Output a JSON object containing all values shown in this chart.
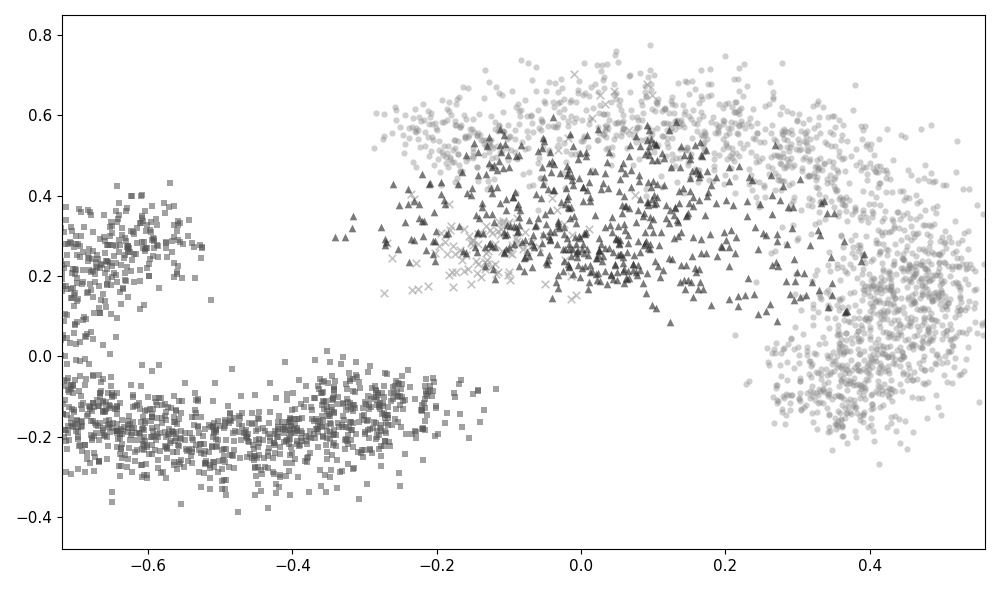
{
  "seed": 7,
  "n_squares": 1200,
  "n_crosses_main": 60,
  "n_crosses_scatter": 30,
  "n_circles": 1400,
  "n_triangles": 400,
  "square_color": "#555555",
  "cross_color": "#aaaaaa",
  "circle_color": "#888888",
  "triangle_color": "#333333",
  "square_alpha": 0.55,
  "cross_alpha": 0.7,
  "circle_alpha": 0.4,
  "triangle_alpha": 0.65,
  "square_size": 15,
  "cross_size": 30,
  "circle_size": 20,
  "triangle_size": 30,
  "xlim": [
    -0.72,
    0.56
  ],
  "ylim": [
    -0.48,
    0.85
  ],
  "xticks": [
    -0.6,
    -0.4,
    -0.2,
    0.0,
    0.2,
    0.4
  ],
  "yticks": [
    -0.4,
    -0.2,
    0.0,
    0.2,
    0.4,
    0.6,
    0.8
  ],
  "figsize": [
    10.0,
    5.89
  ],
  "dpi": 100
}
